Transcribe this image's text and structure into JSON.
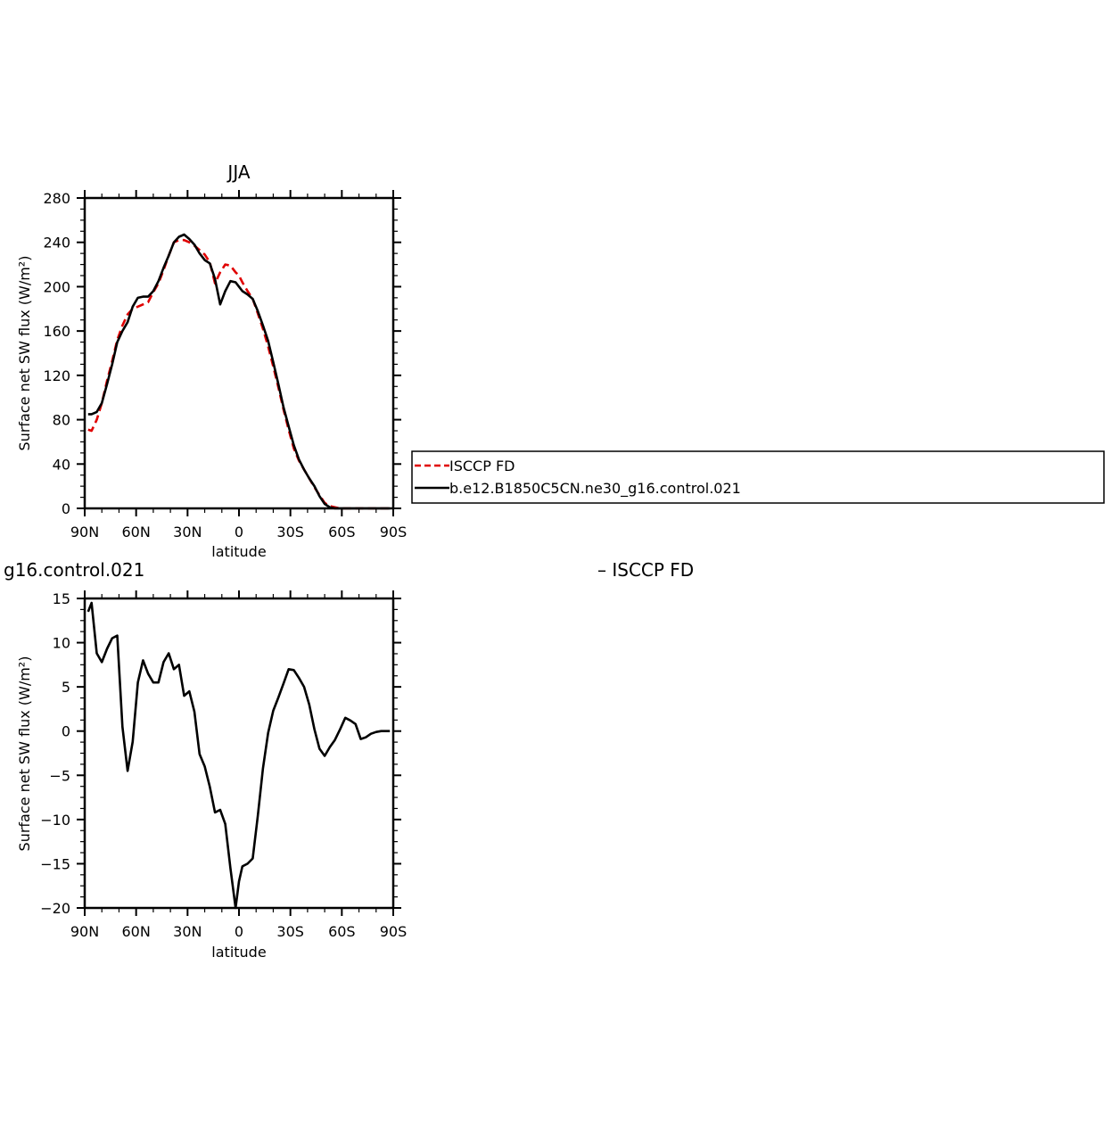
{
  "chart_data": [
    {
      "type": "line",
      "title": "JJA",
      "xlabel": "latitude",
      "ylabel": "Surface net SW flux (W/m²)",
      "xlim": [
        90,
        -90
      ],
      "ylim": [
        0,
        280
      ],
      "x_tick_values": [
        90,
        60,
        30,
        0,
        -30,
        -60,
        -90
      ],
      "x_tick_labels": [
        "90N",
        "60N",
        "30N",
        "0",
        "30S",
        "60S",
        "90S"
      ],
      "y_tick_values": [
        0,
        40,
        80,
        120,
        160,
        200,
        240,
        280
      ],
      "y_tick_labels": [
        "0",
        "40",
        "80",
        "120",
        "160",
        "200",
        "240",
        "280"
      ],
      "legend_position": "right",
      "series": [
        {
          "name": "ISCCP FD",
          "color": "#e00000",
          "dash": "dashed",
          "x": [
            88,
            86,
            83,
            80,
            77,
            74,
            71,
            68,
            65,
            62,
            59,
            56,
            53,
            50,
            47,
            44,
            41,
            38,
            35,
            32,
            29,
            26,
            23,
            20,
            17,
            14,
            11,
            8,
            5,
            2,
            0,
            -2,
            -5,
            -8,
            -11,
            -14,
            -17,
            -20,
            -23,
            -26,
            -29,
            -32,
            -35,
            -38,
            -41,
            -44,
            -47,
            -50,
            -53,
            -56,
            -59,
            -62,
            -65,
            -68,
            -71,
            -74,
            -77,
            -80,
            -83,
            -86,
            -88
          ],
          "y": [
            71,
            70,
            80,
            95,
            115,
            133,
            152,
            165,
            175,
            180,
            182,
            184,
            186,
            195,
            203,
            215,
            228,
            240,
            242,
            242,
            240,
            237,
            233,
            229,
            222,
            203,
            213,
            220,
            219,
            213,
            210,
            204,
            196,
            189,
            176,
            162,
            146,
            128,
            109,
            89,
            71,
            54,
            43,
            35,
            27,
            19,
            12,
            5,
            2,
            1,
            0,
            0,
            0,
            0,
            0,
            0,
            0,
            0,
            0,
            0,
            0
          ]
        },
        {
          "name": "b.e12.B1850C5CN.ne30_g16.control.021",
          "color": "#000000",
          "dash": "solid",
          "x": [
            88,
            86,
            83,
            80,
            77,
            74,
            71,
            68,
            65,
            62,
            59,
            56,
            53,
            50,
            47,
            44,
            41,
            38,
            35,
            32,
            29,
            26,
            23,
            20,
            17,
            14,
            11,
            8,
            5,
            2,
            0,
            -2,
            -5,
            -8,
            -11,
            -14,
            -17,
            -20,
            -23,
            -26,
            -29,
            -32,
            -35,
            -38,
            -41,
            -44,
            -47,
            -50,
            -53,
            -56,
            -59,
            -62,
            -65,
            -68,
            -71,
            -74,
            -77,
            -80,
            -83,
            -86,
            -88
          ],
          "y": [
            85,
            85,
            87,
            95,
            112,
            130,
            150,
            160,
            168,
            182,
            190,
            191,
            191,
            196,
            205,
            217,
            228,
            240,
            245,
            247,
            243,
            238,
            230,
            224,
            221,
            207,
            184,
            196,
            205,
            204,
            200,
            196,
            193,
            189,
            178,
            165,
            151,
            132,
            112,
            91,
            74,
            57,
            44,
            35,
            27,
            20,
            11,
            4,
            1,
            0,
            0,
            0,
            0,
            0,
            0,
            0,
            0,
            0,
            0,
            0,
            0
          ]
        }
      ]
    },
    {
      "type": "line",
      "title": "g16.control.021",
      "right_title": "– ISCCP FD",
      "xlabel": "latitude",
      "ylabel": "Surface net SW flux (W/m²)",
      "xlim": [
        90,
        -90
      ],
      "ylim": [
        -20,
        15
      ],
      "x_tick_values": [
        90,
        60,
        30,
        0,
        -30,
        -60,
        -90
      ],
      "x_tick_labels": [
        "90N",
        "60N",
        "30N",
        "0",
        "30S",
        "60S",
        "90S"
      ],
      "y_tick_values": [
        -20,
        -15,
        -10,
        -5,
        0,
        5,
        10,
        15
      ],
      "y_tick_labels": [
        "−20",
        "−15",
        "−10",
        "−5",
        "0",
        "5",
        "10",
        "15"
      ],
      "series": [
        {
          "color": "#000000",
          "dash": "solid",
          "x": [
            88,
            86,
            83,
            80,
            77,
            74,
            71,
            68,
            65,
            62,
            59,
            56,
            53,
            50,
            47,
            44,
            41,
            38,
            35,
            32,
            29,
            26,
            23,
            20,
            17,
            14,
            11,
            8,
            5,
            2,
            0,
            -2,
            -5,
            -8,
            -11,
            -14,
            -17,
            -20,
            -23,
            -26,
            -29,
            -32,
            -35,
            -38,
            -41,
            -44,
            -47,
            -50,
            -53,
            -56,
            -59,
            -62,
            -65,
            -68,
            -71,
            -74,
            -77,
            -80,
            -83,
            -86,
            -88
          ],
          "y": [
            13.5,
            14.5,
            8.8,
            7.8,
            9.3,
            10.5,
            10.8,
            0.5,
            -4.5,
            -1.2,
            5.5,
            8.0,
            6.5,
            5.5,
            5.5,
            7.8,
            8.8,
            7.0,
            7.5,
            4.0,
            4.5,
            2.2,
            -2.6,
            -4.0,
            -6.3,
            -9.2,
            -8.9,
            -10.5,
            -15.5,
            -20.0,
            -17.0,
            -15.3,
            -15.0,
            -14.4,
            -9.6,
            -4.2,
            -0.2,
            2.3,
            3.8,
            5.4,
            7.0,
            6.9,
            6.0,
            5.0,
            3.0,
            0.2,
            -2.0,
            -2.8,
            -1.8,
            -1.0,
            0.2,
            1.5,
            1.2,
            0.8,
            -0.9,
            -0.7,
            -0.3,
            -0.1,
            0,
            0,
            0
          ]
        }
      ]
    }
  ]
}
